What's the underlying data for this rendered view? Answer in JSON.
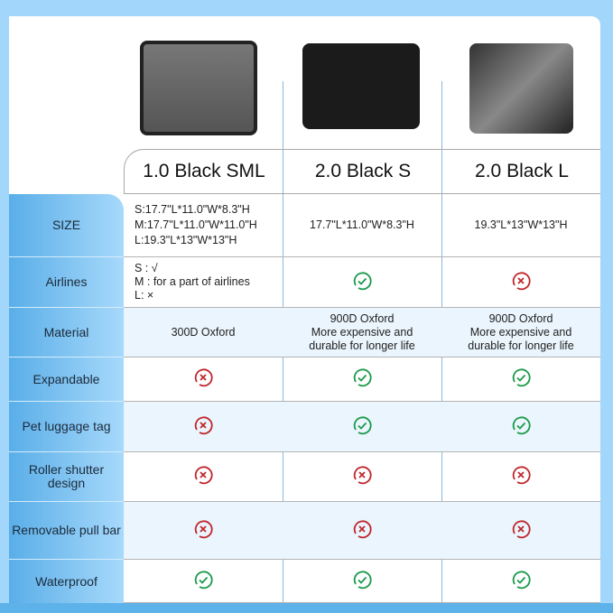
{
  "products": [
    {
      "name": "1.0 Black SML",
      "image": "gray-pet-carrier-bag"
    },
    {
      "name": "2.0 Black S",
      "image": "black-pet-carrier-bag-open-top"
    },
    {
      "name": "2.0 Black L",
      "image": "black-pet-carrier-bag-expanded"
    }
  ],
  "colors": {
    "check": "#1a9a4a",
    "cross": "#c0262c",
    "accent": "#5aaee8"
  },
  "rows": [
    {
      "label": "SIZE",
      "values": [
        [
          "S:17.7\"L*11.0\"W*8.3\"H",
          "M:17.7\"L*11.0\"W*11.0\"H",
          "L:19.3\"L*13\"W*13\"H"
        ],
        [
          "17.7\"L*11.0\"W*8.3\"H"
        ],
        [
          "19.3\"L*13\"W*13\"H"
        ]
      ]
    },
    {
      "label": "Airlines",
      "values": [
        [
          "S : √",
          "M : for a part of airlines",
          "L: ×"
        ],
        "check",
        "cross"
      ]
    },
    {
      "label": "Material",
      "values": [
        [
          "300D Oxford"
        ],
        [
          "900D Oxford",
          "More expensive and",
          "durable for longer life"
        ],
        [
          "900D Oxford",
          "More expensive and",
          "durable for longer life"
        ]
      ]
    },
    {
      "label": "Expandable",
      "values": [
        "cross",
        "check",
        "check"
      ]
    },
    {
      "label": "Pet luggage tag",
      "values": [
        "cross",
        "check",
        "check"
      ]
    },
    {
      "label": "Roller shutter design",
      "values": [
        "cross",
        "cross",
        "cross"
      ]
    },
    {
      "label": "Removable pull bar",
      "values": [
        "cross",
        "cross",
        "cross"
      ]
    },
    {
      "label": "Waterproof",
      "values": [
        "check",
        "check",
        "check"
      ]
    }
  ]
}
